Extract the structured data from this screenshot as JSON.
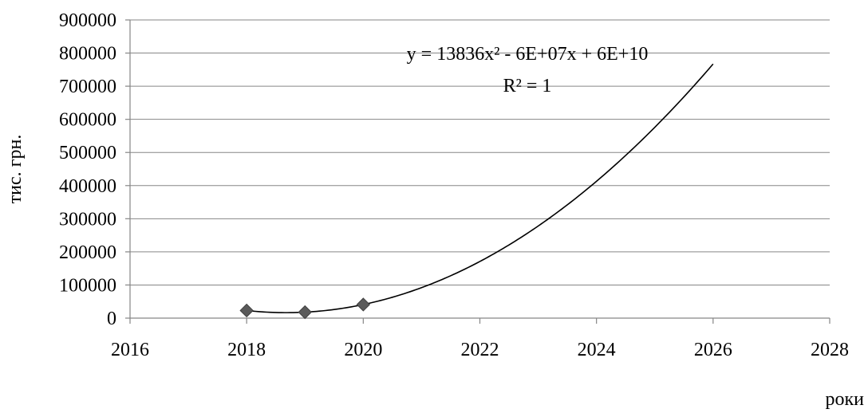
{
  "chart_data": {
    "type": "scatter",
    "title": "",
    "xlabel": "роки",
    "ylabel": "тис. грн.",
    "xlim": [
      2016,
      2028
    ],
    "ylim": [
      0,
      900000
    ],
    "xticks": [
      2016,
      2018,
      2020,
      2022,
      2024,
      2026,
      2028
    ],
    "yticks": [
      0,
      100000,
      200000,
      300000,
      400000,
      500000,
      600000,
      700000,
      800000,
      900000
    ],
    "grid": "horizontal",
    "legend": "none",
    "series": [
      {
        "marker": "diamond",
        "color": "#5a5a5a",
        "x": [
          2018,
          2019,
          2020
        ],
        "y": [
          23000,
          18000,
          41000
        ]
      }
    ],
    "trendline": {
      "type": "polynomial",
      "order": 2,
      "equation": "y = 13836x² - 6E+07x + 6E+10",
      "r_squared": "R² = 1",
      "x_range": [
        2018,
        2026
      ],
      "points": [
        [
          2018,
          23000
        ],
        [
          2019,
          18000
        ],
        [
          2020,
          41000
        ]
      ],
      "color": "#000000"
    }
  }
}
